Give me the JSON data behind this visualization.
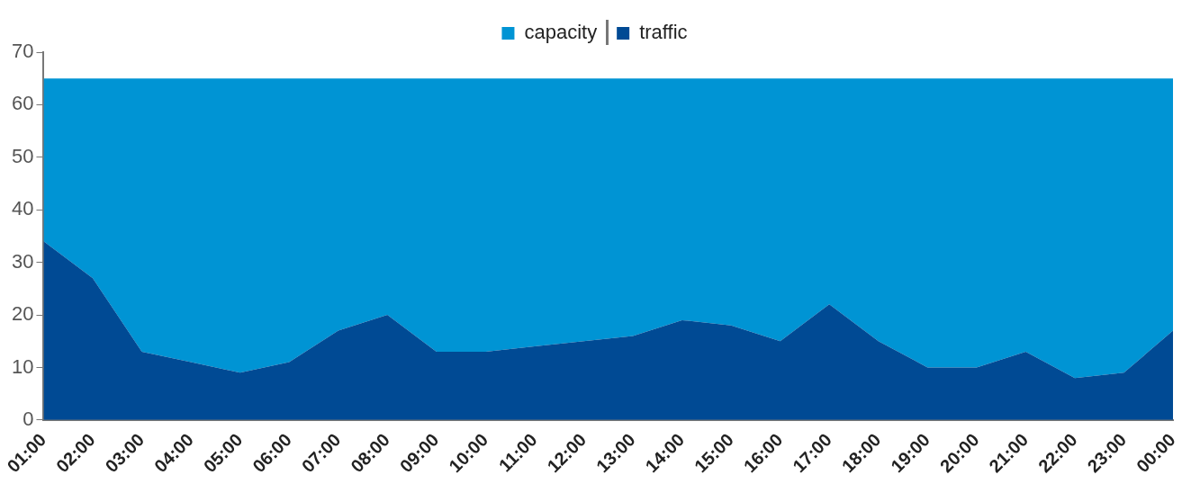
{
  "chart_data": {
    "type": "area",
    "categories": [
      "01:00",
      "02:00",
      "03:00",
      "04:00",
      "05:00",
      "06:00",
      "07:00",
      "08:00",
      "09:00",
      "10:00",
      "11:00",
      "12:00",
      "13:00",
      "14:00",
      "15:00",
      "16:00",
      "17:00",
      "18:00",
      "19:00",
      "20:00",
      "21:00",
      "22:00",
      "23:00",
      "00:00"
    ],
    "series": [
      {
        "name": "capacity",
        "color": "#0094d4",
        "values": [
          65,
          65,
          65,
          65,
          65,
          65,
          65,
          65,
          65,
          65,
          65,
          65,
          65,
          65,
          65,
          65,
          65,
          65,
          65,
          65,
          65,
          65,
          65,
          65
        ]
      },
      {
        "name": "traffic",
        "color": "#004a94",
        "values": [
          34,
          27,
          13,
          11,
          9,
          11,
          17,
          20,
          13,
          13,
          14,
          15,
          16,
          19,
          18,
          15,
          22,
          15,
          10,
          10,
          13,
          8,
          9,
          17
        ]
      }
    ],
    "ylim": [
      0,
      70
    ],
    "yticks": [
      0,
      10,
      20,
      30,
      40,
      50,
      60,
      70
    ],
    "grid": false,
    "legend": "top"
  }
}
